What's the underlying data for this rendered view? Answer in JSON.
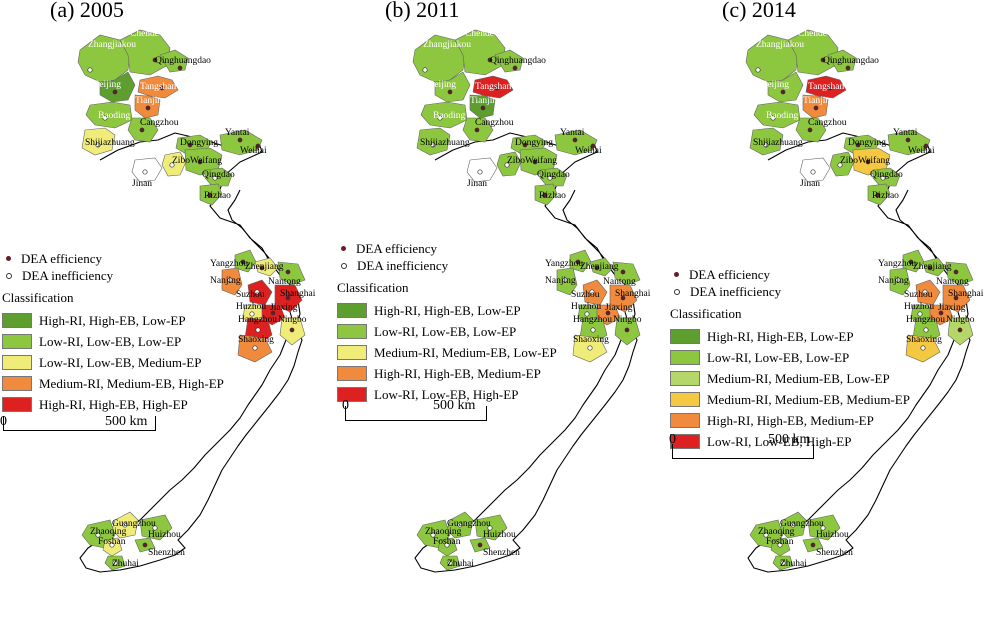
{
  "colors": {
    "dark_green": "#5e9e2f",
    "green": "#8dc63f",
    "light_green": "#b5d669",
    "yellow": "#f0ec7a",
    "gold": "#f5c842",
    "orange": "#f08a3c",
    "red": "#dd2020",
    "outline": "#000000"
  },
  "legend_common": {
    "efficient": "DEA efficiency",
    "inefficient": "DEA inefficiency",
    "heading": "Classification",
    "scale_zero": "0",
    "scale_km": "500 km"
  },
  "panels": [
    {
      "title": "(a) 2005",
      "classes": [
        {
          "label": "High-RI, High-EB, Low-EP",
          "color": "#5e9e2f"
        },
        {
          "label": "Low-RI, Low-EB, Low-EP",
          "color": "#8dc63f"
        },
        {
          "label": "Low-RI, Low-EB, Medium-EP",
          "color": "#f0ec7a"
        },
        {
          "label": "Medium-RI, Medium-EB, High-EP",
          "color": "#f08a3c"
        },
        {
          "label": "High-RI, High-EB, High-EP",
          "color": "#dd2020"
        }
      ]
    },
    {
      "title": "(b) 2011",
      "classes": [
        {
          "label": "High-RI, High-EB, Low-EP",
          "color": "#5e9e2f"
        },
        {
          "label": "Low-RI, Low-EB, Low-EP",
          "color": "#8dc63f"
        },
        {
          "label": "Medium-RI, Medium-EB, Low-EP",
          "color": "#f0ec7a"
        },
        {
          "label": "High-RI, High-EB, Medium-EP",
          "color": "#f08a3c"
        },
        {
          "label": "Low-RI, Low-EB, High-EP",
          "color": "#dd2020"
        }
      ]
    },
    {
      "title": "(c) 2014",
      "classes": [
        {
          "label": "High-RI, High-EB, Low-EP",
          "color": "#5e9e2f"
        },
        {
          "label": "Low-RI, Low-EB, Low-EP",
          "color": "#8dc63f"
        },
        {
          "label": "Medium-RI, Medium-EB, Low-EP",
          "color": "#b5d669"
        },
        {
          "label": "Medium-RI, Medium-EB, Medium-EP",
          "color": "#f5c842"
        },
        {
          "label": "High-RI, High-EB, Medium-EP",
          "color": "#f08a3c"
        },
        {
          "label": "Low-RI, Low-EB, High-EP",
          "color": "#dd2020"
        }
      ]
    }
  ],
  "cities": {
    "zhangjiakou": "Zhangjiakou",
    "chende": "Chende",
    "qinghuangdao": "Qinghuangdao",
    "beijing": "Beijing",
    "tangshan": "Tangshan",
    "tianjin": "Tianjin",
    "baoding": "Baoding",
    "cangzhou": "Cangzhou",
    "shijiazhuang": "Shijiazhuang",
    "dongying": "Dongying",
    "yantai": "Yantai",
    "weihai": "Weihai",
    "zibo": "Zibo",
    "weifang": "Weifang",
    "qingdao": "Qingdao",
    "jinan": "Jinan",
    "rizhao": "Rizhao",
    "yangzhou": "Yangzhou",
    "zhenjiang": "Zhenjiang",
    "nanjing": "Nanjing",
    "nantong": "Nantong",
    "suzhou": "Suzhou",
    "shanghai": "Shanghai",
    "huzhou": "Huzhou",
    "jiaxing": "Jiaxing",
    "hangzhou": "Hangzhou",
    "ningbo": "Ningbo",
    "shaoxing": "Shaoxing",
    "guangzhou": "Guangzhou",
    "zhaoqing": "Zhaoqing",
    "foshan": "Foshan",
    "huizhou": "Huizhou",
    "shenzhen": "Shenzhen",
    "zhuhai": "Zhuhai"
  },
  "region_colors": [
    {
      "zhangjiakou": "green",
      "chende": "green",
      "qinghuangdao": "green",
      "beijing": "dark_green",
      "tangshan": "orange",
      "tianjin": "orange",
      "baoding": "green",
      "cangzhou": "green",
      "shijiazhuang": "yellow",
      "dongying": "green",
      "yantai": "green",
      "zibo": "yellow",
      "weifang": "green",
      "qingdao": "green",
      "jinan": "white",
      "rizhao": "green",
      "yangzhou": "green",
      "zhenjiang": "yellow",
      "nanjing": "orange",
      "nantong": "green",
      "suzhou": "red",
      "shanghai": "red",
      "huzhou": "yellow",
      "jiaxing": "red",
      "hangzhou": "red",
      "ningbo": "yellow",
      "shaoxing": "orange",
      "guangzhou": "yellow",
      "zhaoqing": "green",
      "foshan": "yellow",
      "huizhou": "green",
      "shenzhen": "green",
      "zhuhai": "green"
    },
    {
      "zhangjiakou": "green",
      "chende": "green",
      "qinghuangdao": "green",
      "beijing": "green",
      "tangshan": "red",
      "tianjin": "dark_green",
      "baoding": "green",
      "cangzhou": "green",
      "shijiazhuang": "green",
      "dongying": "green",
      "yantai": "green",
      "zibo": "green",
      "weifang": "green",
      "qingdao": "green",
      "jinan": "white",
      "rizhao": "green",
      "yangzhou": "green",
      "zhenjiang": "green",
      "nanjing": "green",
      "nantong": "green",
      "suzhou": "orange",
      "shanghai": "orange",
      "huzhou": "green",
      "jiaxing": "orange",
      "hangzhou": "green",
      "ningbo": "green",
      "shaoxing": "yellow",
      "guangzhou": "green",
      "zhaoqing": "green",
      "foshan": "green",
      "huizhou": "green",
      "shenzhen": "green",
      "zhuhai": "green"
    },
    {
      "zhangjiakou": "green",
      "chende": "green",
      "qinghuangdao": "green",
      "beijing": "green",
      "tangshan": "red",
      "tianjin": "orange",
      "baoding": "green",
      "cangzhou": "green",
      "shijiazhuang": "green",
      "dongying": "green",
      "yantai": "green",
      "zibo": "green",
      "weifang": "gold",
      "qingdao": "green",
      "jinan": "white",
      "rizhao": "green",
      "yangzhou": "green",
      "zhenjiang": "green",
      "nanjing": "green",
      "nantong": "green",
      "suzhou": "orange",
      "shanghai": "orange",
      "huzhou": "green",
      "jiaxing": "orange",
      "hangzhou": "green",
      "ningbo": "light_green",
      "shaoxing": "gold",
      "guangzhou": "green",
      "zhaoqing": "green",
      "foshan": "green",
      "huizhou": "green",
      "shenzhen": "green",
      "zhuhai": "green"
    }
  ]
}
